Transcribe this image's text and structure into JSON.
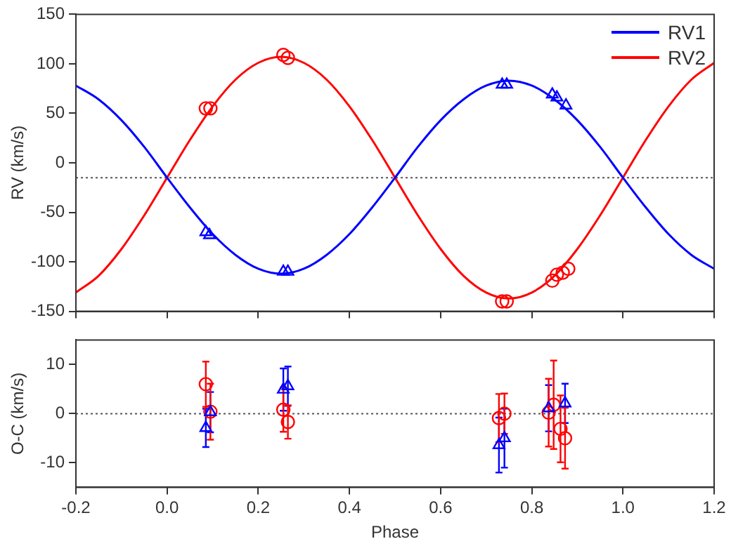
{
  "chart_data": [
    {
      "type": "line",
      "ylabel": "RV (km/s)",
      "xlim": [
        -0.2,
        1.2
      ],
      "xticks": [
        -0.2,
        0,
        0.2,
        0.4,
        0.6,
        0.8,
        1,
        1.2
      ],
      "ylim": [
        -150,
        150
      ],
      "yticks": [
        -150,
        -100,
        -50,
        0,
        50,
        100,
        150
      ],
      "tick_labels": "y",
      "legend": "top right",
      "x": [
        -0.2,
        -0.15,
        -0.1,
        -0.05,
        0,
        0.05,
        0.1,
        0.15,
        0.2,
        0.25,
        0.3,
        0.35,
        0.4,
        0.45,
        0.5,
        0.55,
        0.6,
        0.65,
        0.7,
        0.75,
        0.8,
        0.85,
        0.9,
        0.95,
        1,
        1.05,
        1.1,
        1.15,
        1.2
      ],
      "series": [
        {
          "name": "RV1",
          "color": "#0000ff",
          "values": [
            78,
            64,
            43,
            16,
            -15,
            -45,
            -72,
            -93,
            -107,
            -112,
            -107,
            -93,
            -72,
            -45,
            -15,
            16,
            43,
            64,
            78,
            83,
            78,
            64,
            43,
            16,
            -15,
            -45,
            -72,
            -93,
            -107
          ]
        },
        {
          "name": "RV2",
          "color": "#ff0000",
          "values": [
            -131,
            -114,
            -87,
            -53,
            -15,
            23,
            57,
            84,
            101,
            107,
            101,
            84,
            57,
            23,
            -15,
            -53,
            -87,
            -114,
            -131,
            -137,
            -131,
            -114,
            -87,
            -53,
            -15,
            23,
            57,
            84,
            101
          ]
        },
        {
          "type": "scatter",
          "marker": "triangle",
          "color": "#0000ff",
          "x": [
            0.085,
            0.093,
            0.255,
            0.265,
            0.735,
            0.745,
            0.845,
            0.855,
            0.875
          ],
          "values": [
            -70,
            -73,
            -110,
            -110,
            79,
            79,
            69,
            66,
            58
          ]
        },
        {
          "type": "scatter",
          "marker": "circle",
          "color": "#ff0000",
          "x": [
            0.085,
            0.095,
            0.255,
            0.265,
            0.735,
            0.745,
            0.845,
            0.855,
            0.868,
            0.88
          ],
          "values": [
            55,
            55,
            109,
            106,
            -140,
            -140,
            -119,
            -113,
            -111,
            -107
          ]
        }
      ],
      "ref_lines": [
        {
          "axis": "y",
          "value": -15,
          "line_style": "dotted",
          "color": "#555555"
        }
      ]
    },
    {
      "type": "scatter",
      "xlabel": "Phase",
      "ylabel": "O-C (km/s)",
      "xlim": [
        -0.2,
        1.2
      ],
      "xticks": [
        -0.2,
        {
          "value": 0,
          "label": "0.0"
        },
        0.2,
        0.4,
        0.6,
        0.8,
        {
          "value": 1,
          "label": "1.0"
        },
        1.2
      ],
      "ylim": [
        -15,
        15
      ],
      "yticks": [
        -10,
        0,
        10
      ],
      "series": [
        {
          "marker": "triangle",
          "color": "#0000ff",
          "x": [
            0.085,
            0.095,
            0.255,
            0.265,
            0.728,
            0.74,
            0.837,
            0.873
          ],
          "values": [
            -2.9,
            0.3,
            4.9,
            5.6,
            -6.4,
            -5,
            1.1,
            2.1
          ],
          "errors": [
            3.9,
            4.1,
            4.3,
            4,
            5.6,
            6,
            4.7,
            4
          ]
        },
        {
          "marker": "circle",
          "color": "#ff0000",
          "x": [
            0.085,
            0.095,
            0.255,
            0.265,
            0.728,
            0.74,
            0.837,
            0.848,
            0.863,
            0.873
          ],
          "values": [
            6,
            0.4,
            0.8,
            -1.7,
            -0.9,
            0,
            0.2,
            1.8,
            -3.1,
            -5
          ],
          "errors": [
            4.6,
            5.7,
            4.5,
            3.4,
            4.9,
            4.1,
            6.9,
            9,
            6.8,
            6.2
          ]
        }
      ],
      "ref_lines": [
        {
          "axis": "y",
          "value": 0,
          "line_style": "dotted",
          "color": "#555555"
        }
      ]
    }
  ]
}
